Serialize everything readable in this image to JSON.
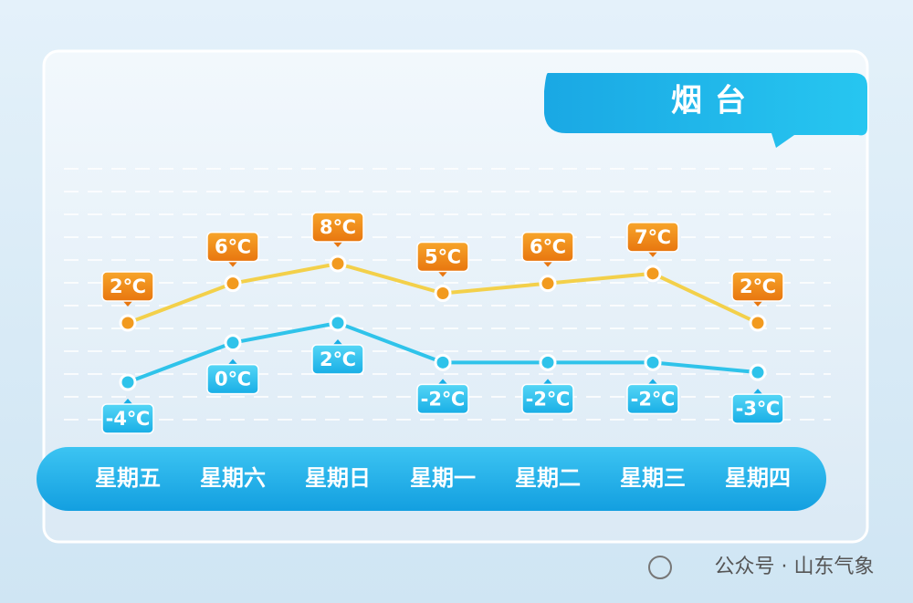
{
  "chart_data": {
    "type": "line",
    "title": "烟台",
    "categories": [
      "星期五",
      "星期六",
      "星期日",
      "星期一",
      "星期二",
      "星期三",
      "星期四"
    ],
    "series": [
      {
        "color": "#f29a1f",
        "values": [
          2,
          6,
          8,
          5,
          6,
          7,
          2
        ],
        "value_labels": [
          "2℃",
          "6℃",
          "8℃",
          "5℃",
          "6℃",
          "7℃",
          "2℃"
        ]
      },
      {
        "color": "#2fc3ea",
        "values": [
          -4,
          0,
          2,
          -2,
          -2,
          -2,
          -3
        ],
        "value_labels": [
          "-4℃",
          "0℃",
          "2℃",
          "-2℃",
          "-2℃",
          "-2℃",
          "-3℃"
        ]
      }
    ]
  },
  "watermark": "公众号 · 山东气象"
}
